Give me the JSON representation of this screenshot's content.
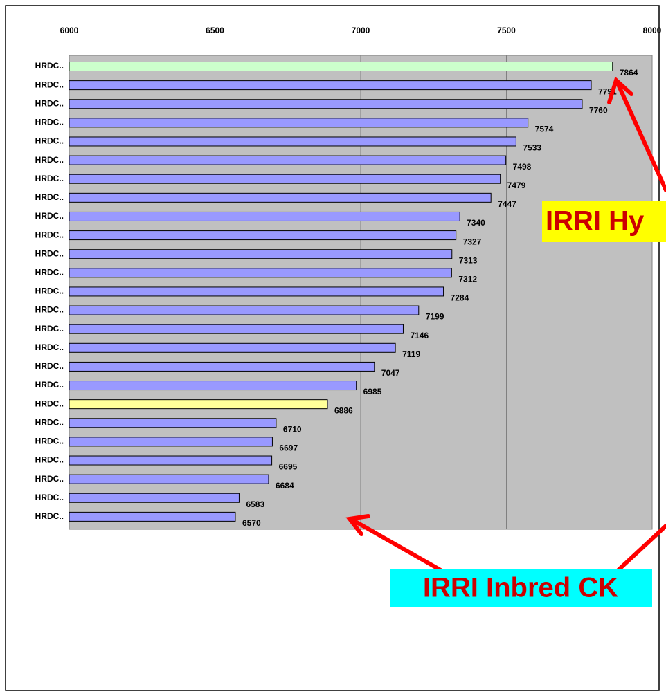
{
  "chart_data": {
    "type": "bar",
    "orientation": "horizontal",
    "categories": [
      "HRDC..",
      "HRDC..",
      "HRDC..",
      "HRDC..",
      "HRDC..",
      "HRDC..",
      "HRDC..",
      "HRDC..",
      "HRDC..",
      "HRDC..",
      "HRDC..",
      "HRDC..",
      "HRDC..",
      "HRDC..",
      "HRDC..",
      "HRDC..",
      "HRDC..",
      "HRDC..",
      "HRDC..",
      "HRDC..",
      "HRDC..",
      "HRDC..",
      "HRDC..",
      "HRDC..",
      "HRDC.."
    ],
    "values": [
      7864,
      7791,
      7760,
      7574,
      7533,
      7498,
      7479,
      7447,
      7340,
      7327,
      7313,
      7312,
      7284,
      7199,
      7146,
      7119,
      7047,
      6985,
      6886,
      6710,
      6697,
      6695,
      6684,
      6583,
      6570
    ],
    "colors": [
      "#ccffcc",
      "#9999ff",
      "#9999ff",
      "#9999ff",
      "#9999ff",
      "#9999ff",
      "#9999ff",
      "#9999ff",
      "#9999ff",
      "#9999ff",
      "#9999ff",
      "#9999ff",
      "#9999ff",
      "#9999ff",
      "#9999ff",
      "#9999ff",
      "#9999ff",
      "#9999ff",
      "#ffff99",
      "#9999ff",
      "#9999ff",
      "#9999ff",
      "#9999ff",
      "#9999ff",
      "#9999ff"
    ],
    "xlim": [
      6000,
      8000
    ],
    "xticks": [
      6000,
      6500,
      7000,
      7500,
      8000
    ],
    "grid": true,
    "annotations": [
      "IRRI Hy",
      "IRRI Inbred CK"
    ]
  }
}
